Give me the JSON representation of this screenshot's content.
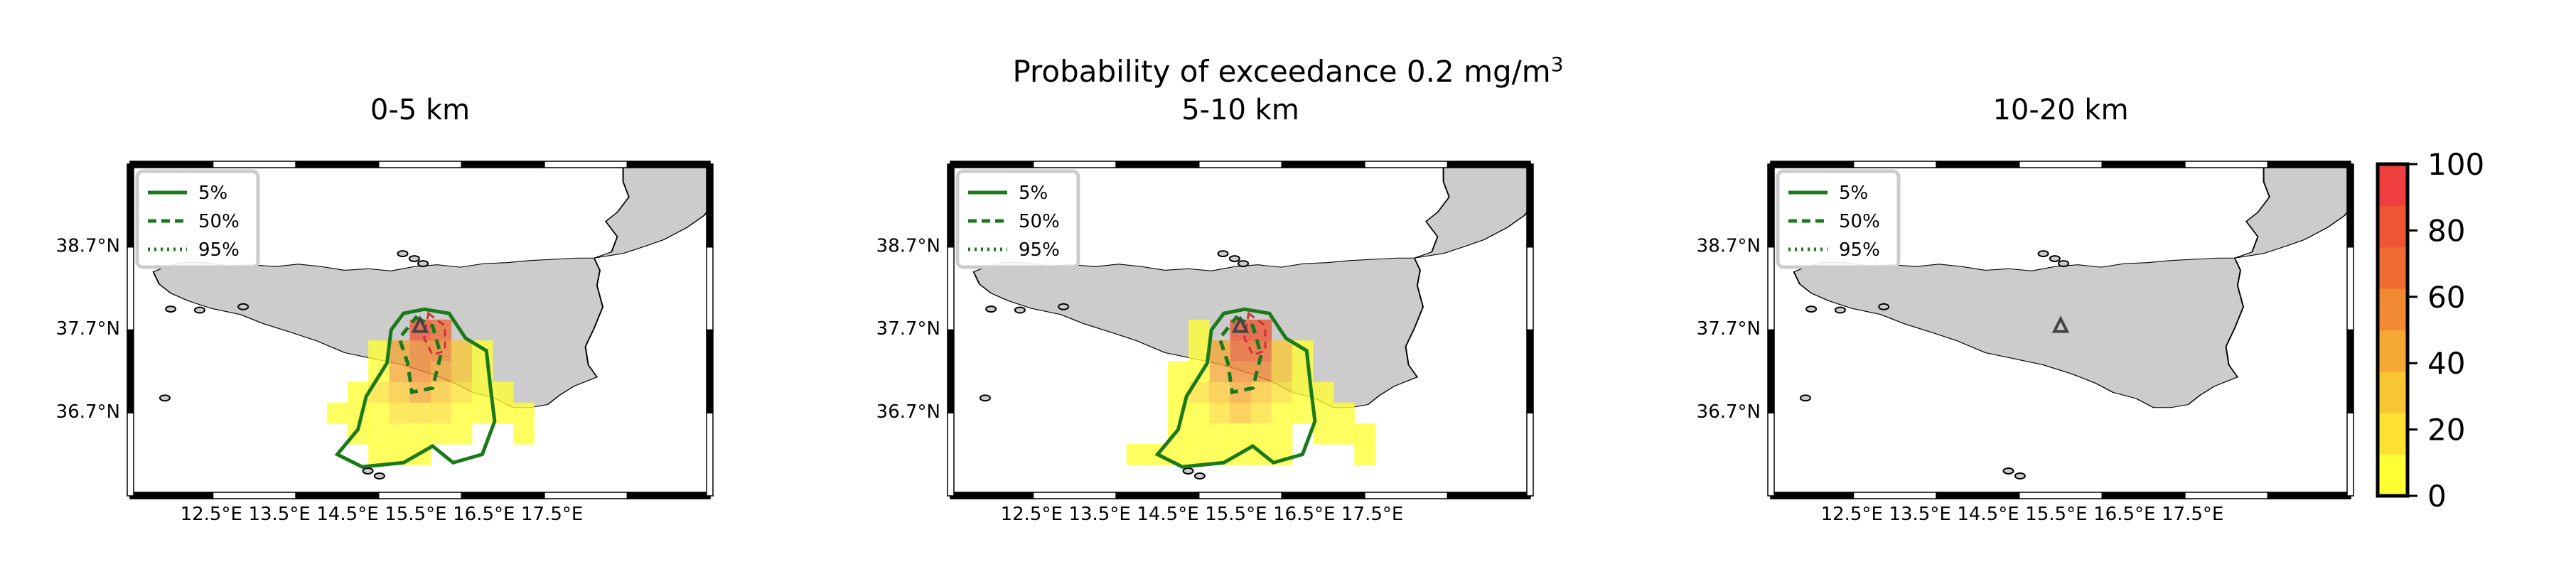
{
  "figure": {
    "suptitle_line1": "Probability of exceedance 0.2 mg/m",
    "suptitle_sup": "3"
  },
  "legend_entries": [
    {
      "label": "5%",
      "style": "solid"
    },
    {
      "label": "50%",
      "style": "dashed"
    },
    {
      "label": "95%",
      "style": "dotted"
    }
  ],
  "axes": {
    "x_ticks": [
      "12.5°E",
      "13.5°E",
      "14.5°E",
      "15.5°E",
      "16.5°E",
      "17.5°E"
    ],
    "y_ticks": [
      "38.7°N",
      "37.7°N",
      "36.7°N"
    ]
  },
  "colorbar": {
    "ticks": [
      "0",
      "20",
      "40",
      "60",
      "80",
      "100"
    ],
    "colormap": [
      "#ffff33",
      "#fee233",
      "#f9c633",
      "#f5a733",
      "#f28a33",
      "#ef6c33",
      "#ee5533",
      "#ee3e3e"
    ]
  },
  "colors": {
    "contour": "#1a7a1a",
    "land": "#cccccc",
    "vent": "#444444"
  },
  "chart_data": [
    {
      "type": "heatmap",
      "title": "5-10 km",
      "xlabel": "",
      "ylabel": "",
      "xlim": [
        11.5,
        18.5
      ],
      "ylim": [
        35.7,
        39.7
      ],
      "vent": {
        "lon": 15.0,
        "lat": 37.75
      },
      "cell_size_deg": 0.25,
      "cells": [
        {
          "lon": 15.0,
          "lat": 37.7,
          "p": 85
        },
        {
          "lon": 15.25,
          "lat": 37.7,
          "p": 80
        },
        {
          "lon": 15.0,
          "lat": 37.45,
          "p": 70
        },
        {
          "lon": 15.25,
          "lat": 37.45,
          "p": 65
        },
        {
          "lon": 14.75,
          "lat": 37.45,
          "p": 45
        },
        {
          "lon": 15.5,
          "lat": 37.45,
          "p": 35
        },
        {
          "lon": 14.75,
          "lat": 37.2,
          "p": 40
        },
        {
          "lon": 15.0,
          "lat": 37.2,
          "p": 55
        },
        {
          "lon": 15.25,
          "lat": 37.2,
          "p": 50
        },
        {
          "lon": 15.5,
          "lat": 37.2,
          "p": 30
        },
        {
          "lon": 14.5,
          "lat": 36.95,
          "p": 15
        },
        {
          "lon": 14.75,
          "lat": 36.95,
          "p": 30
        },
        {
          "lon": 15.0,
          "lat": 36.95,
          "p": 40
        },
        {
          "lon": 15.25,
          "lat": 36.95,
          "p": 35
        },
        {
          "lon": 15.5,
          "lat": 36.95,
          "p": 20
        },
        {
          "lon": 14.25,
          "lat": 36.7,
          "p": 8
        },
        {
          "lon": 14.5,
          "lat": 36.7,
          "p": 12
        },
        {
          "lon": 14.75,
          "lat": 36.7,
          "p": 18
        },
        {
          "lon": 15.0,
          "lat": 36.7,
          "p": 25
        },
        {
          "lon": 15.25,
          "lat": 36.7,
          "p": 20
        },
        {
          "lon": 15.5,
          "lat": 36.7,
          "p": 12
        },
        {
          "lon": 15.75,
          "lat": 36.7,
          "p": 6
        },
        {
          "lon": 14.25,
          "lat": 36.45,
          "p": 5
        },
        {
          "lon": 14.5,
          "lat": 36.45,
          "p": 8
        },
        {
          "lon": 14.75,
          "lat": 36.45,
          "p": 10
        },
        {
          "lon": 15.0,
          "lat": 36.45,
          "p": 12
        },
        {
          "lon": 15.25,
          "lat": 36.45,
          "p": 10
        },
        {
          "lon": 15.5,
          "lat": 36.45,
          "p": 6
        },
        {
          "lon": 14.0,
          "lat": 36.2,
          "p": 3
        },
        {
          "lon": 14.25,
          "lat": 36.2,
          "p": 5
        },
        {
          "lon": 14.5,
          "lat": 36.2,
          "p": 6
        },
        {
          "lon": 14.75,
          "lat": 36.2,
          "p": 8
        },
        {
          "lon": 15.0,
          "lat": 36.2,
          "p": 6
        },
        {
          "lon": 15.25,
          "lat": 36.2,
          "p": 5
        },
        {
          "lon": 14.5,
          "lat": 37.7,
          "p": 3
        },
        {
          "lon": 14.5,
          "lat": 37.45,
          "p": 5
        },
        {
          "lon": 14.25,
          "lat": 37.2,
          "p": 4
        },
        {
          "lon": 14.5,
          "lat": 37.2,
          "p": 8
        },
        {
          "lon": 15.75,
          "lat": 37.45,
          "p": 5
        },
        {
          "lon": 15.75,
          "lat": 37.2,
          "p": 6
        },
        {
          "lon": 15.75,
          "lat": 36.95,
          "p": 6
        },
        {
          "lon": 16.0,
          "lat": 36.95,
          "p": 4
        },
        {
          "lon": 16.0,
          "lat": 36.7,
          "p": 4
        },
        {
          "lon": 16.25,
          "lat": 36.7,
          "p": 3
        },
        {
          "lon": 16.0,
          "lat": 36.45,
          "p": 3
        },
        {
          "lon": 16.25,
          "lat": 36.45,
          "p": 3
        },
        {
          "lon": 16.5,
          "lat": 36.45,
          "p": 2
        },
        {
          "lon": 15.5,
          "lat": 36.2,
          "p": 3
        },
        {
          "lon": 16.5,
          "lat": 36.2,
          "p": 2
        },
        {
          "lon": 13.75,
          "lat": 36.2,
          "p": 2
        },
        {
          "lon": 14.25,
          "lat": 36.95,
          "p": 4
        }
      ]
    },
    {
      "type": "heatmap",
      "title": "0-5 km",
      "xlabel": "",
      "ylabel": "",
      "xlim": [
        11.5,
        18.5
      ],
      "ylim": [
        35.7,
        39.7
      ],
      "vent": {
        "lon": 15.0,
        "lat": 37.75
      },
      "cell_size_deg": 0.25,
      "cells": [
        {
          "lon": 15.0,
          "lat": 37.7,
          "p": 75
        },
        {
          "lon": 15.25,
          "lat": 37.7,
          "p": 65
        },
        {
          "lon": 15.0,
          "lat": 37.45,
          "p": 60
        },
        {
          "lon": 15.25,
          "lat": 37.45,
          "p": 55
        },
        {
          "lon": 14.75,
          "lat": 37.45,
          "p": 40
        },
        {
          "lon": 15.5,
          "lat": 37.45,
          "p": 30
        },
        {
          "lon": 14.75,
          "lat": 37.2,
          "p": 40
        },
        {
          "lon": 15.0,
          "lat": 37.2,
          "p": 50
        },
        {
          "lon": 15.25,
          "lat": 37.2,
          "p": 45
        },
        {
          "lon": 15.5,
          "lat": 37.2,
          "p": 25
        },
        {
          "lon": 14.5,
          "lat": 36.95,
          "p": 15
        },
        {
          "lon": 14.75,
          "lat": 36.95,
          "p": 30
        },
        {
          "lon": 15.0,
          "lat": 36.95,
          "p": 40
        },
        {
          "lon": 15.25,
          "lat": 36.95,
          "p": 30
        },
        {
          "lon": 15.5,
          "lat": 36.95,
          "p": 18
        },
        {
          "lon": 14.25,
          "lat": 36.7,
          "p": 6
        },
        {
          "lon": 14.5,
          "lat": 36.7,
          "p": 10
        },
        {
          "lon": 14.75,
          "lat": 36.7,
          "p": 15
        },
        {
          "lon": 15.0,
          "lat": 36.7,
          "p": 20
        },
        {
          "lon": 15.25,
          "lat": 36.7,
          "p": 15
        },
        {
          "lon": 15.5,
          "lat": 36.7,
          "p": 10
        },
        {
          "lon": 15.75,
          "lat": 36.7,
          "p": 5
        },
        {
          "lon": 14.25,
          "lat": 36.45,
          "p": 4
        },
        {
          "lon": 14.5,
          "lat": 36.45,
          "p": 6
        },
        {
          "lon": 14.75,
          "lat": 36.45,
          "p": 8
        },
        {
          "lon": 15.0,
          "lat": 36.45,
          "p": 10
        },
        {
          "lon": 15.25,
          "lat": 36.45,
          "p": 8
        },
        {
          "lon": 15.5,
          "lat": 36.45,
          "p": 5
        },
        {
          "lon": 14.5,
          "lat": 36.2,
          "p": 4
        },
        {
          "lon": 14.75,
          "lat": 36.2,
          "p": 5
        },
        {
          "lon": 15.0,
          "lat": 36.2,
          "p": 4
        },
        {
          "lon": 14.25,
          "lat": 36.95,
          "p": 4
        },
        {
          "lon": 14.5,
          "lat": 37.2,
          "p": 6
        },
        {
          "lon": 14.5,
          "lat": 37.45,
          "p": 4
        },
        {
          "lon": 15.75,
          "lat": 37.45,
          "p": 5
        },
        {
          "lon": 15.75,
          "lat": 37.2,
          "p": 6
        },
        {
          "lon": 15.75,
          "lat": 36.95,
          "p": 6
        },
        {
          "lon": 16.0,
          "lat": 36.95,
          "p": 4
        },
        {
          "lon": 16.0,
          "lat": 36.7,
          "p": 3
        },
        {
          "lon": 16.25,
          "lat": 36.7,
          "p": 2
        },
        {
          "lon": 16.25,
          "lat": 36.45,
          "p": 2
        },
        {
          "lon": 14.0,
          "lat": 36.7,
          "p": 3
        }
      ]
    },
    {
      "type": "heatmap",
      "title": "10-20 km",
      "xlabel": "",
      "ylabel": "",
      "xlim": [
        11.5,
        18.5
      ],
      "ylim": [
        35.7,
        39.7
      ],
      "vent": {
        "lon": 15.0,
        "lat": 37.75
      },
      "cell_size_deg": 0.25,
      "cells": []
    }
  ]
}
